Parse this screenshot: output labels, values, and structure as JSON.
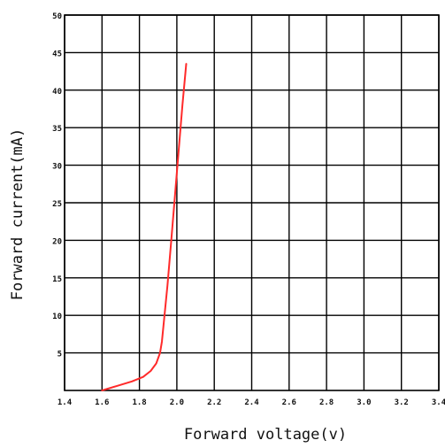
{
  "chart_data": {
    "type": "line",
    "title": "",
    "xlabel": "Forward voltage(v)",
    "ylabel": "Forward current(mA)",
    "xlim": [
      1.4,
      3.4
    ],
    "ylim": [
      0,
      50
    ],
    "x_ticks": [
      "1.4",
      "1.6",
      "1.8",
      "2.0",
      "2.2",
      "2.4",
      "2.6",
      "2.8",
      "3.0",
      "3.2",
      "3.4"
    ],
    "y_ticks": [
      "5",
      "10",
      "15",
      "20",
      "25",
      "30",
      "35",
      "40",
      "45",
      "50"
    ],
    "grid": true,
    "series": [
      {
        "color": "#ff2a2a",
        "x": [
          1.6,
          1.68,
          1.76,
          1.82,
          1.86,
          1.89,
          1.91,
          1.92,
          1.93,
          1.95,
          1.97,
          1.99,
          2.01,
          2.03,
          2.05
        ],
        "y": [
          0.0,
          0.6,
          1.2,
          1.8,
          2.6,
          3.6,
          5.0,
          6.5,
          9.0,
          14.0,
          20.0,
          26.0,
          32.0,
          38.0,
          43.5
        ]
      }
    ]
  }
}
